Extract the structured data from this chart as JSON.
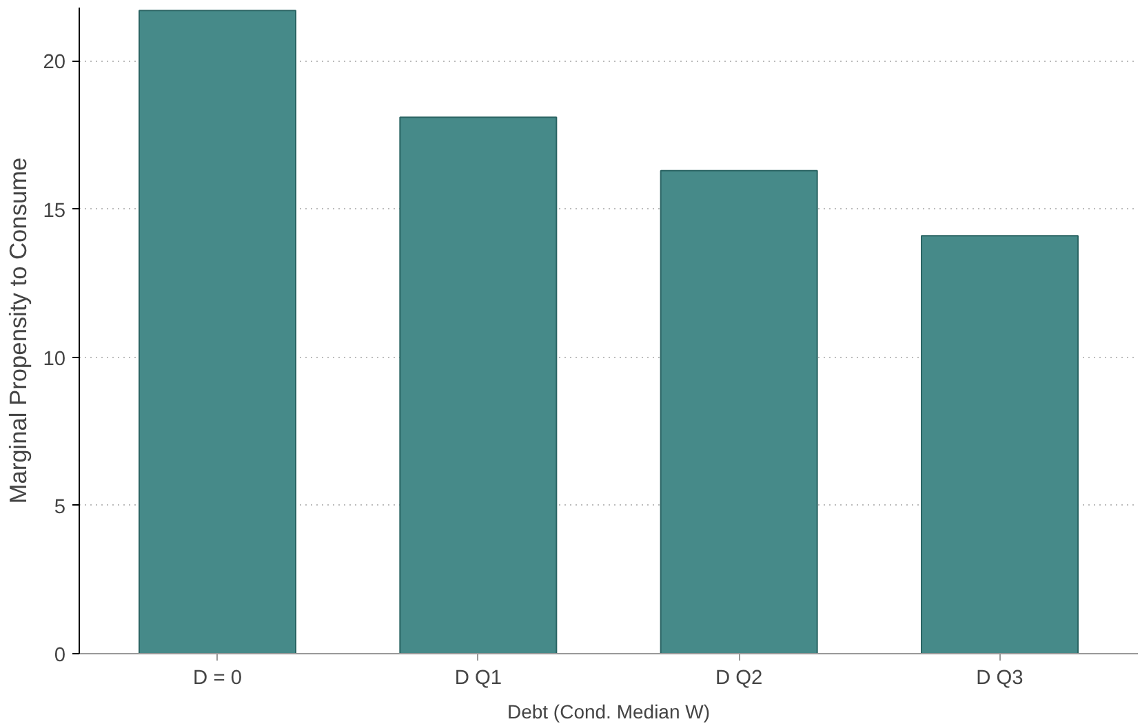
{
  "chart_data": {
    "type": "bar",
    "xlabel": "Debt (Cond. Median W)",
    "ylabel": "Marginal Propensity to Consume",
    "categories": [
      "D = 0",
      "D Q1",
      "D Q2",
      "D Q3"
    ],
    "values": [
      21.7,
      18.1,
      16.3,
      14.1
    ],
    "color": "#468a89",
    "ylim": [
      0,
      21.8
    ],
    "yticks": [
      0,
      5,
      10,
      15,
      20
    ],
    "grid": "y"
  }
}
